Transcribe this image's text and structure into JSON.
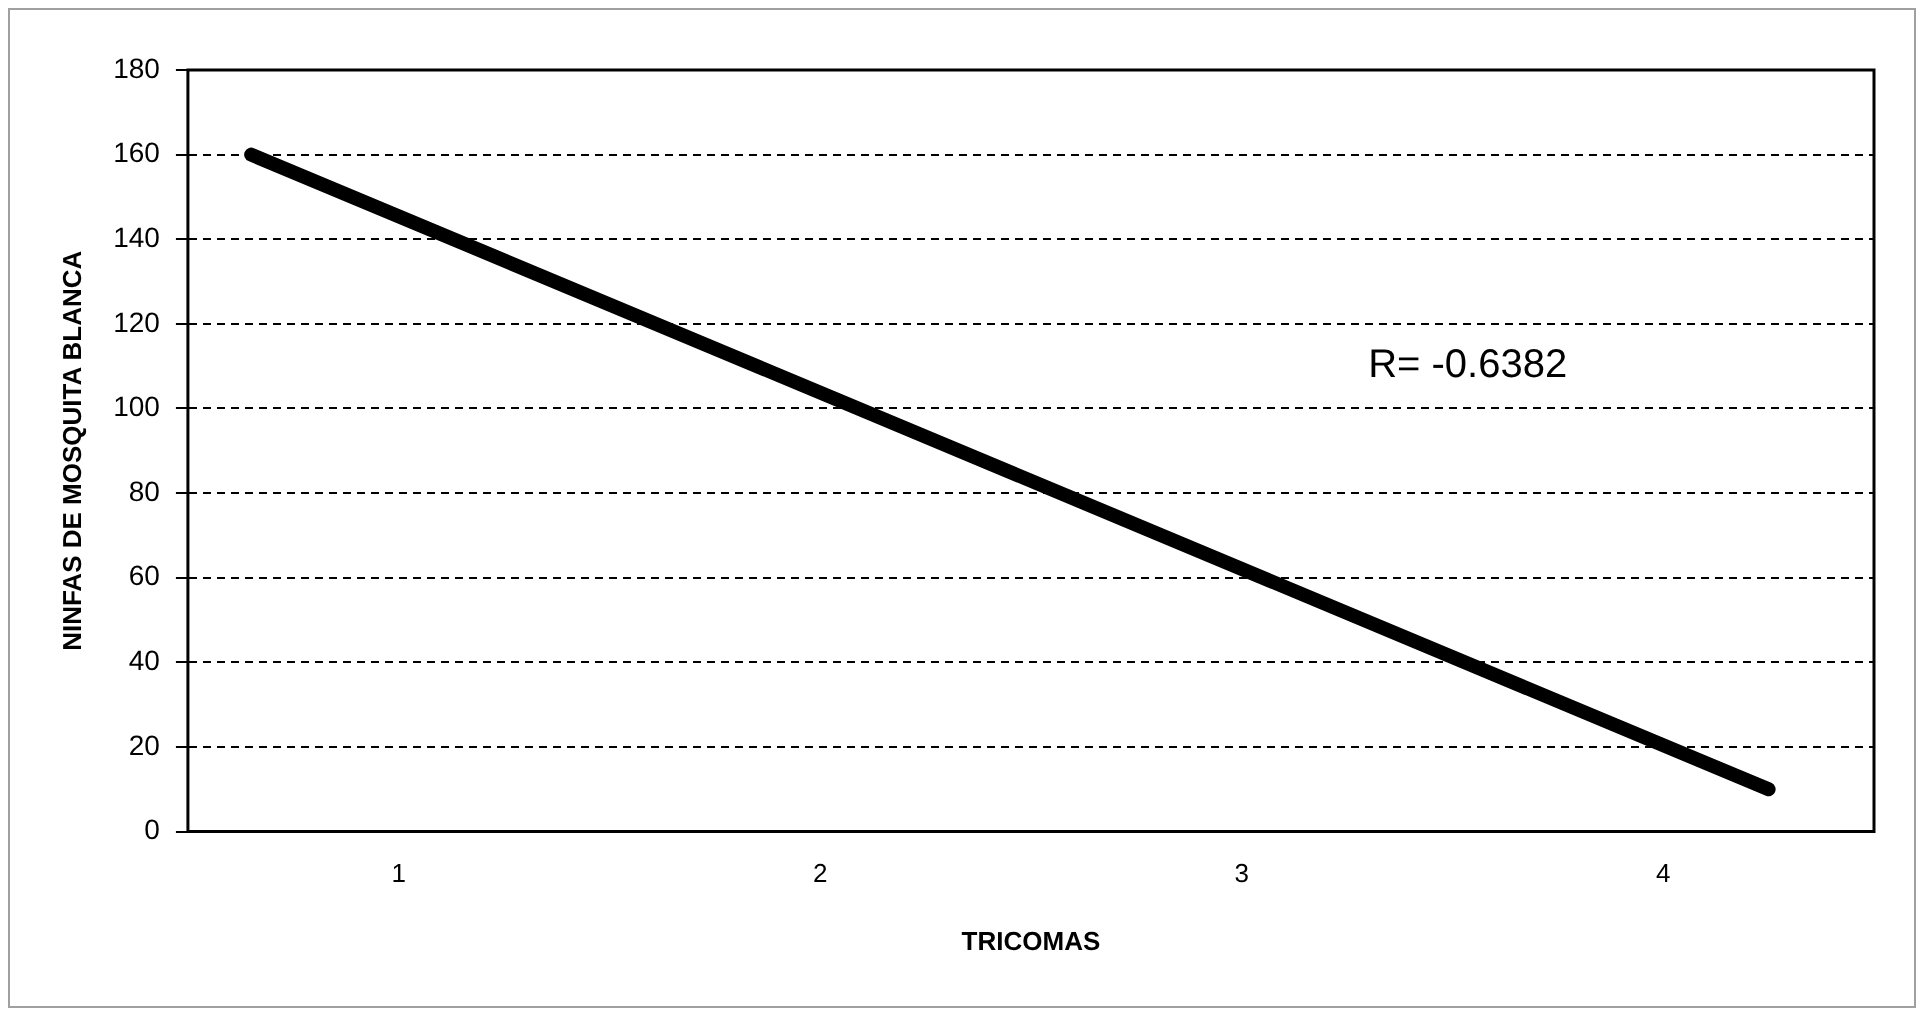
{
  "chart_data": {
    "type": "line",
    "xlabel": "TRICOMAS",
    "ylabel": "NINFAS DE MOSQUITA BLANCA",
    "x": [
      0.65,
      4.25
    ],
    "series": [
      {
        "color": "#000000",
        "values": [
          160,
          10
        ]
      }
    ],
    "xlim": [
      0.5,
      4.5
    ],
    "xticks": [
      1,
      2,
      3,
      4
    ],
    "ylim": [
      0,
      180
    ],
    "yticks": [
      0,
      20,
      40,
      60,
      80,
      100,
      120,
      140,
      160,
      180
    ],
    "grid": "y",
    "legend": false,
    "marker": "none",
    "line_style": "solid",
    "annotations": [
      "R= -0.6382"
    ]
  }
}
